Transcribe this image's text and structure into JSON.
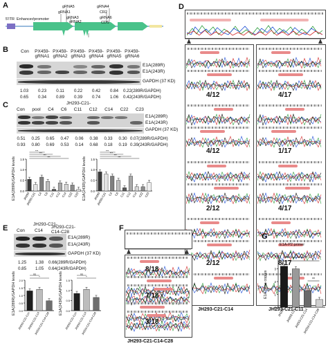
{
  "panels": {
    "A": "A",
    "B": "B",
    "C": "C",
    "D": "D",
    "E": "E",
    "F": "F",
    "G": "G"
  },
  "panelA": {
    "left_label": "5'ITR",
    "enhancer": "Enhancer/promoter",
    "grnas": [
      "gRNA1",
      "gRNA2",
      "gRNA3",
      "gRNA4",
      "gRNA5",
      "gRNA6"
    ],
    "cr": "CR2",
    "cds": "CDS"
  },
  "panelB": {
    "lanes": [
      "Con",
      "PX459-gRNA1",
      "PX459-gRNA2",
      "PX459-gRNA3",
      "PX459-gRNA4",
      "PX459-gRNA5",
      "PX459-gRNA6"
    ],
    "bands": [
      "E1A(289R)",
      "E1A(243R)",
      "GAPDH (37 KD)"
    ],
    "row1": [
      "1.03",
      "0.23",
      "0.11",
      "0.22",
      "0.42",
      "0.84",
      "0.22(289R/GAPDH)"
    ],
    "row2": [
      "0.65",
      "0.34",
      "0.89",
      "0.39",
      "0.74",
      "1.06",
      "0.42(243R/GAPDH)"
    ]
  },
  "panelC": {
    "title": "JH293-C21-",
    "lanes": [
      "Con",
      "pool",
      "C4",
      "C6",
      "C11",
      "C12",
      "C14",
      "C22",
      "C23"
    ],
    "bands": [
      "E1A(289R)",
      "E1A(243R)",
      "GAPDH (37 KD)"
    ],
    "row1": [
      "0.51",
      "0.25",
      "0.65",
      "0.47",
      "0.06",
      "0.38",
      "0.33",
      "0.30",
      "0.07(289R/GAPDH)"
    ],
    "row2": [
      "0.93",
      "0.80",
      "0.69",
      "0.53",
      "0.14",
      "0.68",
      "0.18",
      "0.19",
      "0.39(243R/GAPDH)"
    ],
    "ylabel1": "E1A(289R)/GAPDH levels",
    "ylabel2": "E1A(243R)/GAPDH levels",
    "sig": [
      "***",
      "***",
      "***",
      "***"
    ]
  },
  "panelD": {
    "ratios_left": [
      "4/12",
      "4/12",
      "2/12",
      "2/12"
    ],
    "ratios_right": [
      "4/17",
      "1/17",
      "4/17",
      "8/17"
    ],
    "caption_left": "JH293-C21-C14",
    "caption_right": "JH293-C21-C11"
  },
  "panelE": {
    "lanes": [
      "Con",
      "C14",
      "JH293-C21-C14-C28"
    ],
    "title": "JH293-C21-",
    "bands": [
      "E1A(289R)",
      "E1A(243R)",
      "GAPDH (37 KD)"
    ],
    "row1": [
      "1.25",
      "1.38",
      "0.66(289R/GAPDH)"
    ],
    "row2": [
      "0.85",
      "1.05",
      "0.64(243R/GAPDH)"
    ],
    "ylabel1": "E1A(289R)/GAPDH levels",
    "ylabel2": "E1A(243R)/GAPDH levels"
  },
  "panelF": {
    "ratios": [
      "8/18",
      "7/18",
      "3/18"
    ],
    "caption": "JH293-C21-C14-C28"
  },
  "chart_data": [
    {
      "type": "bar",
      "title": "E1A-P2 primer",
      "ylabel": "E1A gene copies",
      "categories": [
        "JH293",
        "JH293-C21",
        "JH293-C21-C14",
        "JH293-C21-C14-C28"
      ],
      "values": [
        3.2,
        3.0,
        1.3,
        0.6
      ],
      "ylim": [
        0,
        4
      ],
      "yticks": [
        "0",
        "1",
        "2",
        "3",
        "4"
      ],
      "significance": [
        "*",
        "*",
        "**"
      ],
      "colors": [
        "#1a1a1a",
        "#9a9a9a",
        "#6a6a6a",
        "#d0d0d0"
      ]
    },
    {
      "type": "bar",
      "categories": [
        "JH293",
        "JH293-C21",
        "C4",
        "C6",
        "C11",
        "C12",
        "C14",
        "C22",
        "C23"
      ],
      "values": [
        0.55,
        0.3,
        0.65,
        0.45,
        0.08,
        0.38,
        0.32,
        0.28,
        0.08
      ],
      "ylim": [
        0,
        1.5
      ],
      "yticks": [
        "0.0",
        "0.5",
        "1.0",
        "1.5"
      ]
    },
    {
      "type": "bar",
      "categories": [
        "JH293",
        "JH293-C21",
        "C4",
        "C6",
        "C11",
        "C12",
        "C14",
        "C22",
        "C23"
      ],
      "values": [
        0.9,
        0.8,
        0.7,
        0.5,
        0.15,
        0.7,
        0.2,
        0.2,
        0.4
      ],
      "ylim": [
        0,
        1.5
      ],
      "yticks": [
        "0.0",
        "0.5",
        "1.0",
        "1.5"
      ]
    },
    {
      "type": "bar",
      "categories": [
        "JH293-C21-Con",
        "JH293-C21-C14",
        "JH293-C21-C14-C28"
      ],
      "values": [
        1.3,
        1.4,
        0.65
      ],
      "ylim": [
        0,
        2.0
      ],
      "yticks": [
        "0.0",
        "0.5",
        "1.0",
        "1.5",
        "2.0"
      ],
      "significance": [
        "ns",
        "*"
      ]
    },
    {
      "type": "bar",
      "categories": [
        "JH293-C21-Con",
        "JH293-C21-C14",
        "JH293-C21-C14-C28"
      ],
      "values": [
        0.85,
        1.05,
        0.65
      ],
      "ylim": [
        0,
        1.5
      ],
      "yticks": [
        "0.0",
        "0.5",
        "1.0",
        "1.5"
      ],
      "significance": [
        "ns",
        "*"
      ]
    }
  ]
}
